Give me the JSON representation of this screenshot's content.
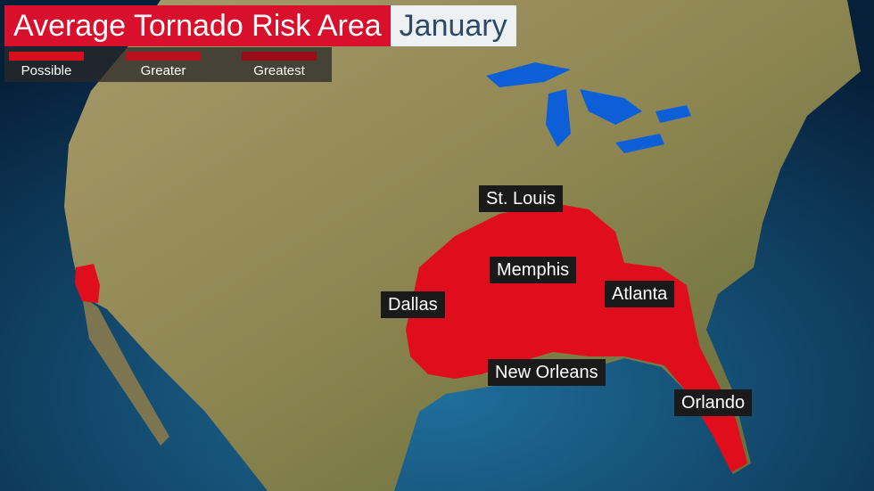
{
  "title": "Average Tornado Risk Area",
  "month": "January",
  "legend": [
    {
      "label": "Possible",
      "color": "#d60f1c"
    },
    {
      "label": "Greater",
      "color": "#b8101c"
    },
    {
      "label": "Greatest",
      "color": "#9a0c18"
    }
  ],
  "cities": [
    "St. Louis",
    "Memphis",
    "Atlanta",
    "Dallas",
    "New Orleans",
    "Orlando"
  ],
  "colors": {
    "risk": "#e00d1c",
    "land": "#8a8350",
    "water": "#0d5fd8"
  }
}
